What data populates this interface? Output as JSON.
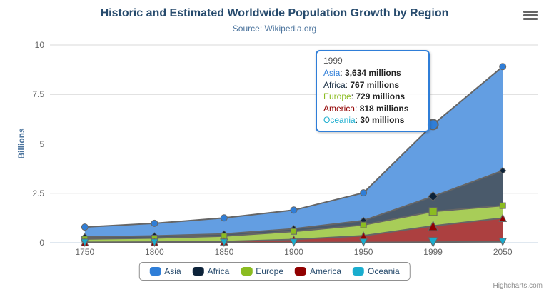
{
  "chart": {
    "title": "Historic and Estimated Worldwide Population Growth by Region",
    "subtitle": "Source: Wikipedia.org",
    "credits": "Highcharts.com",
    "menu_icon": "hamburger-icon"
  },
  "colors": {
    "title": "#274b6d",
    "subtitle": "#4d759e",
    "axis_label": "#666666",
    "grid": "#d8d8d8",
    "axis_line": "#c0d0e0",
    "series_line": "#666666",
    "legend_border": "#909090",
    "tooltip_border": "#2f7ed8"
  },
  "chart_data": {
    "type": "area",
    "stacking": "normal",
    "title": "Historic and Estimated Worldwide Population Growth by Region",
    "subtitle": "Source: Wikipedia.org",
    "categories": [
      "1750",
      "1800",
      "1850",
      "1900",
      "1950",
      "1999",
      "2050"
    ],
    "xlabel": "",
    "ylabel": "Billions",
    "unit": "millions",
    "ylim": [
      0,
      10
    ],
    "yticks": [
      0,
      2.5,
      5,
      7.5,
      10
    ],
    "ytick_labels": [
      "0",
      "2.5",
      "5",
      "7.5",
      "10"
    ],
    "grid": true,
    "legend_position": "bottom",
    "hover_index": 5,
    "series": [
      {
        "name": "Asia",
        "color": "#2f7ed8",
        "fill": "#639ee2",
        "marker": "circle",
        "values": [
          502,
          635,
          809,
          947,
          1402,
          3634,
          5268
        ]
      },
      {
        "name": "Africa",
        "color": "#0d233a",
        "fill": "#4a5a6b",
        "marker": "diamond",
        "values": [
          106,
          107,
          111,
          133,
          221,
          767,
          1766
        ]
      },
      {
        "name": "Europe",
        "color": "#8bbc21",
        "fill": "#a8cd58",
        "marker": "square",
        "values": [
          163,
          203,
          276,
          408,
          547,
          729,
          628
        ]
      },
      {
        "name": "America",
        "color": "#910000",
        "fill": "#ac4040",
        "marker": "triangle",
        "values": [
          18,
          31,
          54,
          156,
          339,
          818,
          1201
        ]
      },
      {
        "name": "Oceania",
        "color": "#1aadce",
        "fill": "#53c2da",
        "marker": "triangle-down",
        "values": [
          2,
          2,
          2,
          6,
          13,
          30,
          46
        ]
      }
    ]
  },
  "tooltip": {
    "header": "1999",
    "rows": [
      {
        "name": "Asia",
        "value": "3,634 millions"
      },
      {
        "name": "Africa",
        "value": "767 millions"
      },
      {
        "name": "Europe",
        "value": "729 millions"
      },
      {
        "name": "America",
        "value": "818 millions"
      },
      {
        "name": "Oceania",
        "value": "30 millions"
      }
    ]
  }
}
